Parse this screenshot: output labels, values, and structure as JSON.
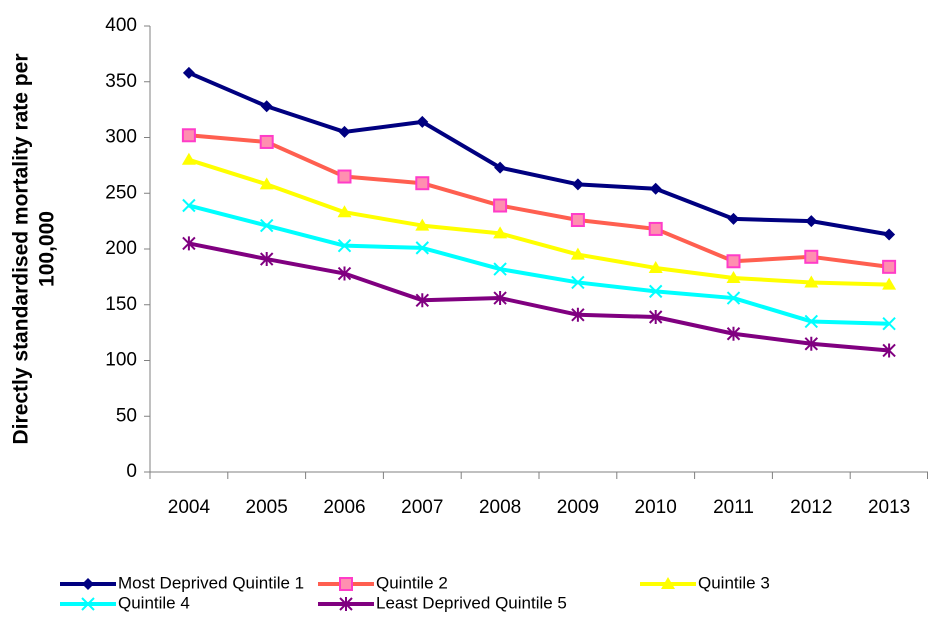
{
  "chart_data": {
    "type": "line",
    "ylabel": [
      "Directly standardised mortality rate per",
      "100,000"
    ],
    "categories": [
      "2004",
      "2005",
      "2006",
      "2007",
      "2008",
      "2009",
      "2010",
      "2011",
      "2012",
      "2013"
    ],
    "ylim": [
      0,
      400
    ],
    "yticks": [
      0,
      50,
      100,
      150,
      200,
      250,
      300,
      350,
      400
    ],
    "grid": false,
    "legend": "bottom",
    "series": [
      {
        "name": "Most Deprived Quintile 1",
        "color": "#000080",
        "marker": "diamond",
        "marker_color": "#000080",
        "values": [
          358,
          328,
          305,
          314,
          273,
          258,
          254,
          227,
          225,
          213
        ]
      },
      {
        "name": "Quintile 2",
        "color": "#ff5f50",
        "marker": "square",
        "marker_color": "#ff3cc8",
        "values": [
          302,
          296,
          265,
          259,
          239,
          226,
          218,
          189,
          193,
          184
        ]
      },
      {
        "name": "Quintile 3",
        "color": "#ffff00",
        "marker": "triangle",
        "marker_color": "#ffff00",
        "values": [
          280,
          258,
          233,
          221,
          214,
          195,
          183,
          174,
          170,
          168
        ]
      },
      {
        "name": "Quintile 4",
        "color": "#00ffff",
        "marker": "x",
        "marker_color": "#00ffff",
        "values": [
          239,
          221,
          203,
          201,
          182,
          170,
          162,
          156,
          135,
          133
        ]
      },
      {
        "name": "Least Deprived Quintile 5",
        "color": "#800080",
        "marker": "star",
        "marker_color": "#800080",
        "values": [
          205,
          191,
          178,
          154,
          156,
          141,
          139,
          124,
          115,
          109
        ]
      }
    ]
  }
}
